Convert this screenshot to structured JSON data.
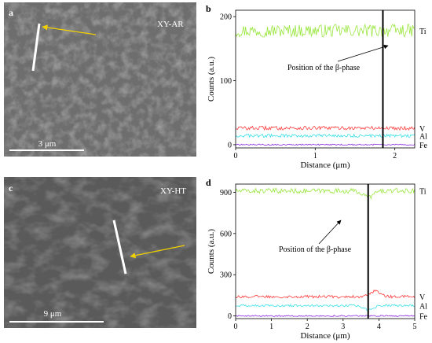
{
  "panels": [
    {
      "id": "a",
      "letter": "a",
      "kind": "sem",
      "tag": "XY-AR",
      "scale_label": "3 μm"
    },
    {
      "id": "b",
      "letter": "b",
      "kind": "chart",
      "annotation": "Position of the β-phase"
    },
    {
      "id": "c",
      "letter": "c",
      "kind": "sem",
      "tag": "XY-HT",
      "scale_label": "9 μm"
    },
    {
      "id": "d",
      "letter": "d",
      "kind": "chart",
      "annotation": "Position of the β-phase"
    }
  ],
  "colors": {
    "Ti": "#99e63d",
    "V": "#ff3a3a",
    "Al": "#38dfe8",
    "Fe": "#8a2be2",
    "marker": "#000000",
    "sem_line": "#ffffff",
    "sem_arrow": "#f0d000"
  },
  "chart_data": [
    {
      "type": "line",
      "panel": "b",
      "xlabel": "Distance (μm)",
      "ylabel": "Counts (a.u.)",
      "xlim": [
        0,
        2.25
      ],
      "ylim": [
        -5,
        210
      ],
      "xticks": [
        0,
        1,
        2
      ],
      "yticks": [
        0,
        100,
        200
      ],
      "marker_x": 1.85,
      "annotation": "Position of the β-phase",
      "series": [
        {
          "name": "Ti",
          "mean": 178,
          "noise": 10
        },
        {
          "name": "V",
          "mean": 26,
          "noise": 3
        },
        {
          "name": "Al",
          "mean": 14,
          "noise": 2.5
        },
        {
          "name": "Fe",
          "mean": 0,
          "noise": 1
        }
      ]
    },
    {
      "type": "line",
      "panel": "d",
      "xlabel": "Distance (μm)",
      "ylabel": "Counts (a.u.)",
      "xlim": [
        0,
        5
      ],
      "ylim": [
        -20,
        960
      ],
      "xticks": [
        0,
        1,
        2,
        3,
        4,
        5
      ],
      "yticks": [
        0,
        300,
        600,
        900
      ],
      "marker_x": 3.7,
      "annotation": "Position of the β-phase",
      "series": [
        {
          "name": "Ti",
          "mean": 910,
          "noise": 18,
          "dip": [
            3.7,
            -45
          ]
        },
        {
          "name": "V",
          "mean": 140,
          "noise": 10,
          "dip": [
            3.9,
            40
          ]
        },
        {
          "name": "Al",
          "mean": 75,
          "noise": 8,
          "dip": [
            3.7,
            -30
          ]
        },
        {
          "name": "Fe",
          "mean": 0,
          "noise": 5
        }
      ]
    }
  ]
}
